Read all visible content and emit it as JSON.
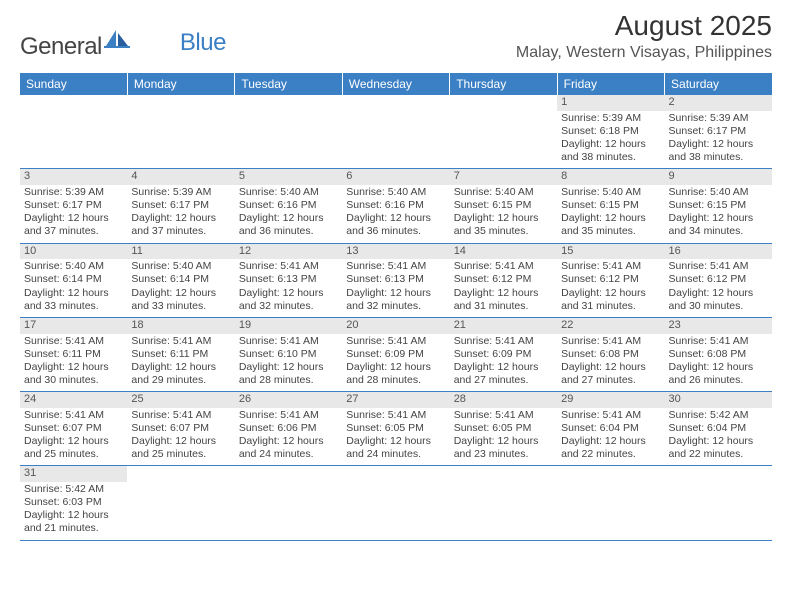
{
  "logo": {
    "text1": "General",
    "text2": "Blue"
  },
  "title": "August 2025",
  "location": "Malay, Western Visayas, Philippines",
  "colors": {
    "header_bg": "#3b7fc4",
    "header_text": "#ffffff",
    "daynum_bg": "#e8e8e8",
    "row_border": "#3b7fc4",
    "text": "#444444",
    "title_text": "#333333",
    "location_text": "#555555",
    "logo_gray": "#444444",
    "logo_blue": "#3b7fc4",
    "background": "#ffffff"
  },
  "typography": {
    "title_fontsize": 28,
    "location_fontsize": 16,
    "header_fontsize": 12,
    "daynum_fontsize": 11,
    "cell_fontsize": 10.5
  },
  "day_headers": [
    "Sunday",
    "Monday",
    "Tuesday",
    "Wednesday",
    "Thursday",
    "Friday",
    "Saturday"
  ],
  "weeks": [
    {
      "nums": [
        "",
        "",
        "",
        "",
        "",
        "1",
        "2"
      ],
      "cells": [
        [],
        [],
        [],
        [],
        [],
        [
          "Sunrise: 5:39 AM",
          "Sunset: 6:18 PM",
          "Daylight: 12 hours",
          "and 38 minutes."
        ],
        [
          "Sunrise: 5:39 AM",
          "Sunset: 6:17 PM",
          "Daylight: 12 hours",
          "and 38 minutes."
        ]
      ]
    },
    {
      "nums": [
        "3",
        "4",
        "5",
        "6",
        "7",
        "8",
        "9"
      ],
      "cells": [
        [
          "Sunrise: 5:39 AM",
          "Sunset: 6:17 PM",
          "Daylight: 12 hours",
          "and 37 minutes."
        ],
        [
          "Sunrise: 5:39 AM",
          "Sunset: 6:17 PM",
          "Daylight: 12 hours",
          "and 37 minutes."
        ],
        [
          "Sunrise: 5:40 AM",
          "Sunset: 6:16 PM",
          "Daylight: 12 hours",
          "and 36 minutes."
        ],
        [
          "Sunrise: 5:40 AM",
          "Sunset: 6:16 PM",
          "Daylight: 12 hours",
          "and 36 minutes."
        ],
        [
          "Sunrise: 5:40 AM",
          "Sunset: 6:15 PM",
          "Daylight: 12 hours",
          "and 35 minutes."
        ],
        [
          "Sunrise: 5:40 AM",
          "Sunset: 6:15 PM",
          "Daylight: 12 hours",
          "and 35 minutes."
        ],
        [
          "Sunrise: 5:40 AM",
          "Sunset: 6:15 PM",
          "Daylight: 12 hours",
          "and 34 minutes."
        ]
      ]
    },
    {
      "nums": [
        "10",
        "11",
        "12",
        "13",
        "14",
        "15",
        "16"
      ],
      "cells": [
        [
          "Sunrise: 5:40 AM",
          "Sunset: 6:14 PM",
          "Daylight: 12 hours",
          "and 33 minutes."
        ],
        [
          "Sunrise: 5:40 AM",
          "Sunset: 6:14 PM",
          "Daylight: 12 hours",
          "and 33 minutes."
        ],
        [
          "Sunrise: 5:41 AM",
          "Sunset: 6:13 PM",
          "Daylight: 12 hours",
          "and 32 minutes."
        ],
        [
          "Sunrise: 5:41 AM",
          "Sunset: 6:13 PM",
          "Daylight: 12 hours",
          "and 32 minutes."
        ],
        [
          "Sunrise: 5:41 AM",
          "Sunset: 6:12 PM",
          "Daylight: 12 hours",
          "and 31 minutes."
        ],
        [
          "Sunrise: 5:41 AM",
          "Sunset: 6:12 PM",
          "Daylight: 12 hours",
          "and 31 minutes."
        ],
        [
          "Sunrise: 5:41 AM",
          "Sunset: 6:12 PM",
          "Daylight: 12 hours",
          "and 30 minutes."
        ]
      ]
    },
    {
      "nums": [
        "17",
        "18",
        "19",
        "20",
        "21",
        "22",
        "23"
      ],
      "cells": [
        [
          "Sunrise: 5:41 AM",
          "Sunset: 6:11 PM",
          "Daylight: 12 hours",
          "and 30 minutes."
        ],
        [
          "Sunrise: 5:41 AM",
          "Sunset: 6:11 PM",
          "Daylight: 12 hours",
          "and 29 minutes."
        ],
        [
          "Sunrise: 5:41 AM",
          "Sunset: 6:10 PM",
          "Daylight: 12 hours",
          "and 28 minutes."
        ],
        [
          "Sunrise: 5:41 AM",
          "Sunset: 6:09 PM",
          "Daylight: 12 hours",
          "and 28 minutes."
        ],
        [
          "Sunrise: 5:41 AM",
          "Sunset: 6:09 PM",
          "Daylight: 12 hours",
          "and 27 minutes."
        ],
        [
          "Sunrise: 5:41 AM",
          "Sunset: 6:08 PM",
          "Daylight: 12 hours",
          "and 27 minutes."
        ],
        [
          "Sunrise: 5:41 AM",
          "Sunset: 6:08 PM",
          "Daylight: 12 hours",
          "and 26 minutes."
        ]
      ]
    },
    {
      "nums": [
        "24",
        "25",
        "26",
        "27",
        "28",
        "29",
        "30"
      ],
      "cells": [
        [
          "Sunrise: 5:41 AM",
          "Sunset: 6:07 PM",
          "Daylight: 12 hours",
          "and 25 minutes."
        ],
        [
          "Sunrise: 5:41 AM",
          "Sunset: 6:07 PM",
          "Daylight: 12 hours",
          "and 25 minutes."
        ],
        [
          "Sunrise: 5:41 AM",
          "Sunset: 6:06 PM",
          "Daylight: 12 hours",
          "and 24 minutes."
        ],
        [
          "Sunrise: 5:41 AM",
          "Sunset: 6:05 PM",
          "Daylight: 12 hours",
          "and 24 minutes."
        ],
        [
          "Sunrise: 5:41 AM",
          "Sunset: 6:05 PM",
          "Daylight: 12 hours",
          "and 23 minutes."
        ],
        [
          "Sunrise: 5:41 AM",
          "Sunset: 6:04 PM",
          "Daylight: 12 hours",
          "and 22 minutes."
        ],
        [
          "Sunrise: 5:42 AM",
          "Sunset: 6:04 PM",
          "Daylight: 12 hours",
          "and 22 minutes."
        ]
      ]
    },
    {
      "nums": [
        "31",
        "",
        "",
        "",
        "",
        "",
        ""
      ],
      "cells": [
        [
          "Sunrise: 5:42 AM",
          "Sunset: 6:03 PM",
          "Daylight: 12 hours",
          "and 21 minutes."
        ],
        [],
        [],
        [],
        [],
        [],
        []
      ]
    }
  ]
}
